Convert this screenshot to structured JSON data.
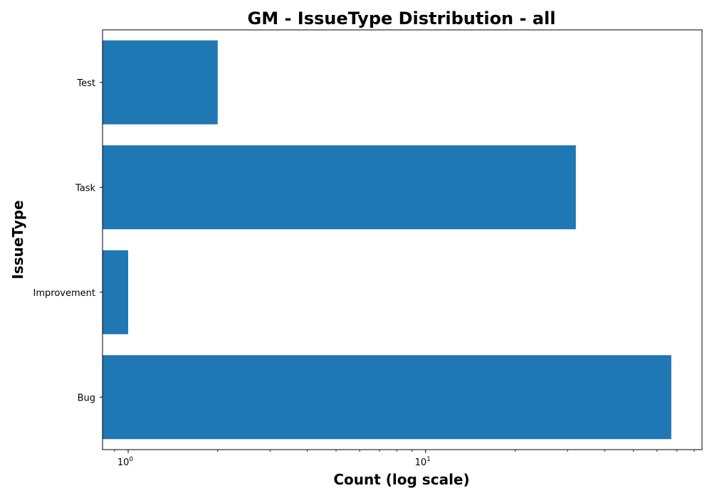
{
  "chart_data": {
    "type": "bar",
    "orientation": "horizontal",
    "title": "GM - IssueType Distribution - all",
    "xlabel": "Count (log scale)",
    "ylabel": "IssueType",
    "x_scale": "log",
    "xlim": [
      0.82,
      85
    ],
    "x_major_ticks": [
      {
        "value": 1,
        "base": "10",
        "exp": "0"
      },
      {
        "value": 10,
        "base": "10",
        "exp": "1"
      }
    ],
    "categories": [
      "Bug",
      "Improvement",
      "Task",
      "Test"
    ],
    "values": [
      67,
      1,
      32,
      2
    ],
    "bar_color": "#1f77b4",
    "grid": false,
    "legend": "none"
  }
}
